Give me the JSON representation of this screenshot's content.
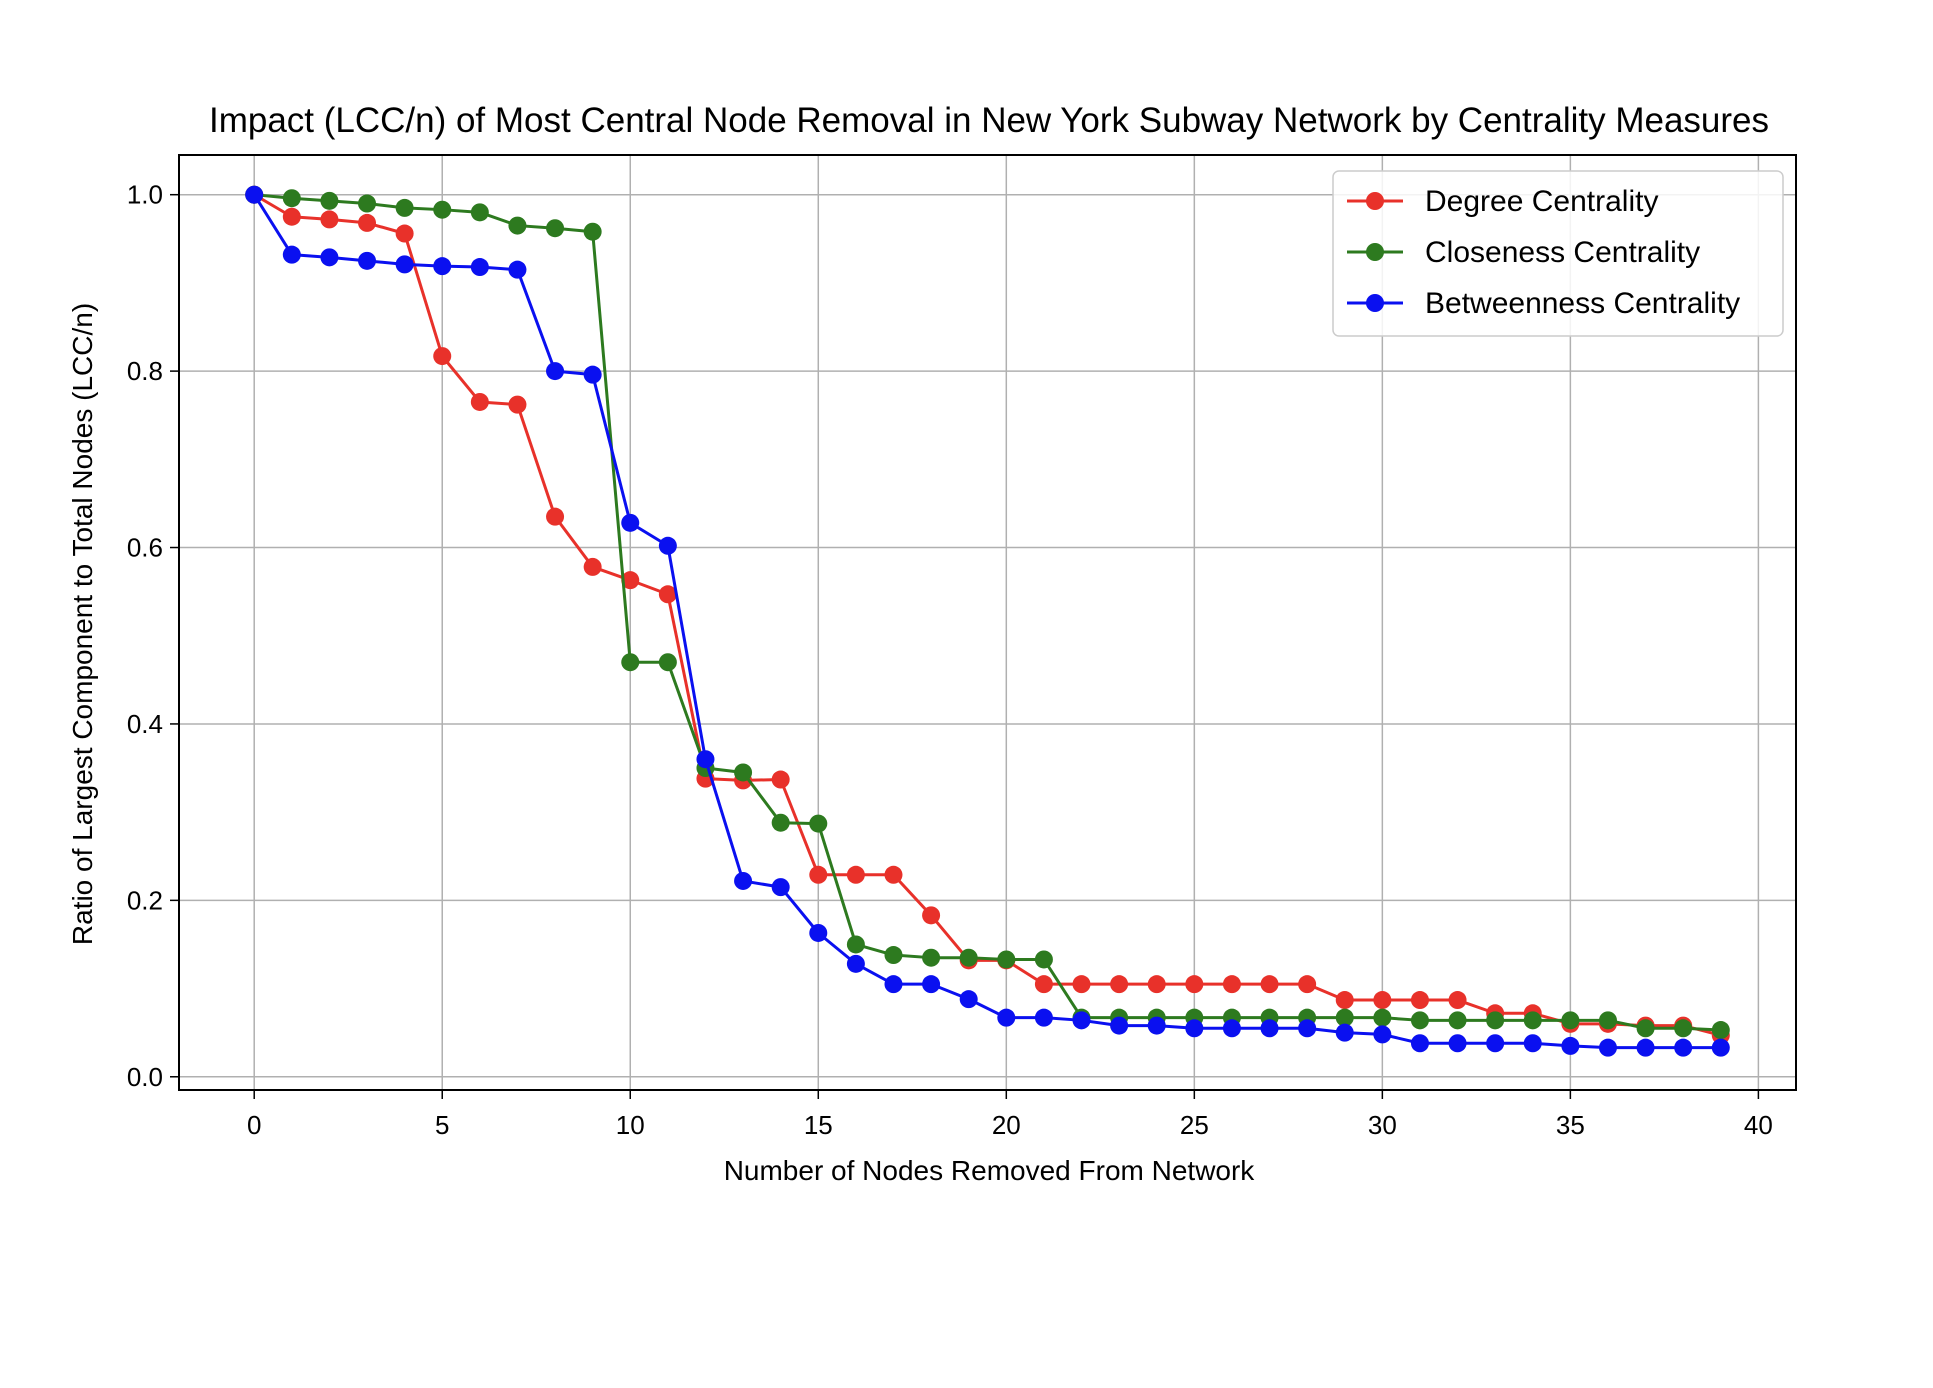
{
  "chart_data": {
    "type": "line",
    "title": "Impact (LCC/n) of Most Central Node Removal in New York Subway Network by Centrality Measures",
    "xlabel": "Number of Nodes Removed From Network",
    "ylabel": "Ratio of Largest Component to Total Nodes (LCC/n)",
    "xlim": [
      -2,
      41
    ],
    "ylim": [
      -0.015,
      1.045
    ],
    "xticks": [
      0,
      5,
      10,
      15,
      20,
      25,
      30,
      35,
      40
    ],
    "yticks": [
      0.0,
      0.2,
      0.4,
      0.6,
      0.8,
      1.0
    ],
    "xtick_labels": [
      "0",
      "5",
      "10",
      "15",
      "20",
      "25",
      "30",
      "35",
      "40"
    ],
    "ytick_labels": [
      "0.0",
      "0.2",
      "0.4",
      "0.6",
      "0.8",
      "1.0"
    ],
    "grid": true,
    "legend_position": "top-right",
    "x": [
      0,
      1,
      2,
      3,
      4,
      5,
      6,
      7,
      8,
      9,
      10,
      11,
      12,
      13,
      14,
      15,
      16,
      17,
      18,
      19,
      20,
      21,
      22,
      23,
      24,
      25,
      26,
      27,
      28,
      29,
      30,
      31,
      32,
      33,
      34,
      35,
      36,
      37,
      38,
      39
    ],
    "series": [
      {
        "name": "Degree Centrality",
        "color": "#e8312a",
        "values": [
          1.0,
          0.975,
          0.972,
          0.968,
          0.956,
          0.817,
          0.765,
          0.762,
          0.635,
          0.578,
          0.563,
          0.547,
          0.338,
          0.336,
          0.337,
          0.229,
          0.229,
          0.229,
          0.183,
          0.132,
          0.132,
          0.105,
          0.105,
          0.105,
          0.105,
          0.105,
          0.105,
          0.105,
          0.105,
          0.087,
          0.087,
          0.087,
          0.087,
          0.072,
          0.072,
          0.06,
          0.06,
          0.058,
          0.058,
          0.047
        ]
      },
      {
        "name": "Closeness Centrality",
        "color": "#2d7a1f",
        "values": [
          1.0,
          0.996,
          0.993,
          0.99,
          0.985,
          0.983,
          0.98,
          0.965,
          0.962,
          0.958,
          0.47,
          0.47,
          0.35,
          0.345,
          0.288,
          0.287,
          0.15,
          0.138,
          0.135,
          0.135,
          0.133,
          0.133,
          0.067,
          0.067,
          0.067,
          0.067,
          0.067,
          0.067,
          0.067,
          0.067,
          0.067,
          0.064,
          0.064,
          0.064,
          0.064,
          0.064,
          0.064,
          0.055,
          0.055,
          0.053
        ]
      },
      {
        "name": "Betweenness Centrality",
        "color": "#0a10f0",
        "values": [
          1.0,
          0.932,
          0.929,
          0.925,
          0.921,
          0.919,
          0.918,
          0.915,
          0.8,
          0.796,
          0.628,
          0.602,
          0.36,
          0.222,
          0.215,
          0.163,
          0.128,
          0.105,
          0.105,
          0.088,
          0.067,
          0.067,
          0.064,
          0.058,
          0.058,
          0.055,
          0.055,
          0.055,
          0.055,
          0.05,
          0.048,
          0.038,
          0.038,
          0.038,
          0.038,
          0.035,
          0.033,
          0.033,
          0.033,
          0.033
        ]
      }
    ]
  }
}
